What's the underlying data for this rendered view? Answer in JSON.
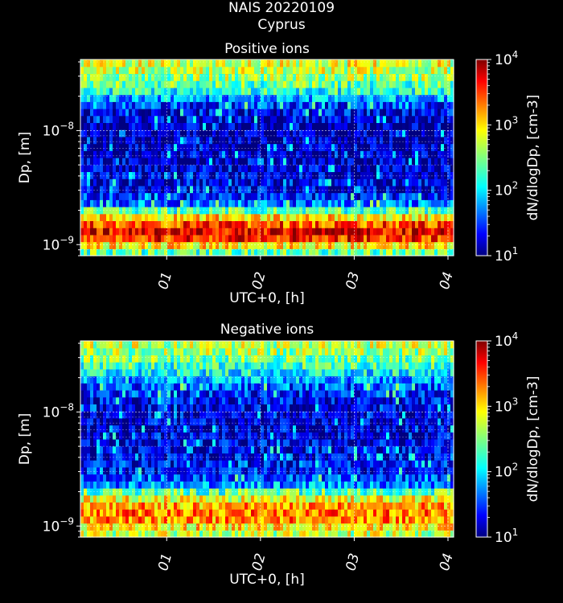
{
  "figure": {
    "title_line1": "NAIS 20220109",
    "title_line2": "Cyprus"
  },
  "chart_data": [
    {
      "type": "heatmap",
      "title": "Positive ions",
      "xlabel": "UTC+0, [h]",
      "ylabel": "Dp, [m]",
      "x_ticks": [
        "01",
        "02",
        "03",
        "04"
      ],
      "x_tick_hours": [
        1,
        2,
        3,
        4
      ],
      "xlim": [
        0.08,
        4.06
      ],
      "y_scale": "log",
      "ylim": [
        8e-10,
        4.2e-08
      ],
      "y_ticks": [
        {
          "mantissa": "10",
          "exp": "−9",
          "value": 1e-09
        },
        {
          "mantissa": "10",
          "exp": "−8",
          "value": 1e-08
        }
      ],
      "grid": true,
      "colorbar": {
        "label": "dN/dlogDp, [cm-3]",
        "scale": "log",
        "range": [
          10,
          10000
        ],
        "colormap": "jet",
        "ticks": [
          {
            "mantissa": "10",
            "exp": "1"
          },
          {
            "mantissa": "10",
            "exp": "2"
          },
          {
            "mantissa": "10",
            "exp": "3"
          },
          {
            "mantissa": "10",
            "exp": "4"
          }
        ]
      },
      "profile": [
        {
          "dp": 4e-08,
          "log10_conc": 2.8
        },
        {
          "dp": 3e-08,
          "log10_conc": 2.6
        },
        {
          "dp": 2.2e-08,
          "log10_conc": 2.2
        },
        {
          "dp": 1.6e-08,
          "log10_conc": 1.4
        },
        {
          "dp": 1e-08,
          "log10_conc": 1.1
        },
        {
          "dp": 5e-09,
          "log10_conc": 1.2
        },
        {
          "dp": 3e-09,
          "log10_conc": 1.3
        },
        {
          "dp": 2.3e-09,
          "log10_conc": 1.7
        },
        {
          "dp": 1.9e-09,
          "log10_conc": 2.6
        },
        {
          "dp": 1.6e-09,
          "log10_conc": 3.3
        },
        {
          "dp": 1.3e-09,
          "log10_conc": 3.7
        },
        {
          "dp": 1.1e-09,
          "log10_conc": 3.5
        },
        {
          "dp": 9e-10,
          "log10_conc": 2.4
        }
      ]
    },
    {
      "type": "heatmap",
      "title": "Negative ions",
      "xlabel": "UTC+0, [h]",
      "ylabel": "Dp, [m]",
      "x_ticks": [
        "01",
        "02",
        "03",
        "04"
      ],
      "x_tick_hours": [
        1,
        2,
        3,
        4
      ],
      "xlim": [
        0.08,
        4.06
      ],
      "y_scale": "log",
      "ylim": [
        8e-10,
        4.2e-08
      ],
      "y_ticks": [
        {
          "mantissa": "10",
          "exp": "−9",
          "value": 1e-09
        },
        {
          "mantissa": "10",
          "exp": "−8",
          "value": 1e-08
        }
      ],
      "grid": true,
      "colorbar": {
        "label": "dN/dlogDp, [cm-3]",
        "scale": "log",
        "range": [
          10,
          10000
        ],
        "colormap": "jet",
        "ticks": [
          {
            "mantissa": "10",
            "exp": "1"
          },
          {
            "mantissa": "10",
            "exp": "2"
          },
          {
            "mantissa": "10",
            "exp": "3"
          },
          {
            "mantissa": "10",
            "exp": "4"
          }
        ]
      },
      "profile": [
        {
          "dp": 4e-08,
          "log10_conc": 2.7
        },
        {
          "dp": 3e-08,
          "log10_conc": 2.5
        },
        {
          "dp": 2.2e-08,
          "log10_conc": 2.1
        },
        {
          "dp": 1.6e-08,
          "log10_conc": 1.5
        },
        {
          "dp": 1e-08,
          "log10_conc": 1.2
        },
        {
          "dp": 5e-09,
          "log10_conc": 1.3
        },
        {
          "dp": 3e-09,
          "log10_conc": 1.4
        },
        {
          "dp": 2.3e-09,
          "log10_conc": 1.8
        },
        {
          "dp": 1.9e-09,
          "log10_conc": 2.6
        },
        {
          "dp": 1.6e-09,
          "log10_conc": 3.1
        },
        {
          "dp": 1.3e-09,
          "log10_conc": 3.3
        },
        {
          "dp": 1.1e-09,
          "log10_conc": 3.2
        },
        {
          "dp": 9e-10,
          "log10_conc": 2.7
        }
      ]
    }
  ]
}
